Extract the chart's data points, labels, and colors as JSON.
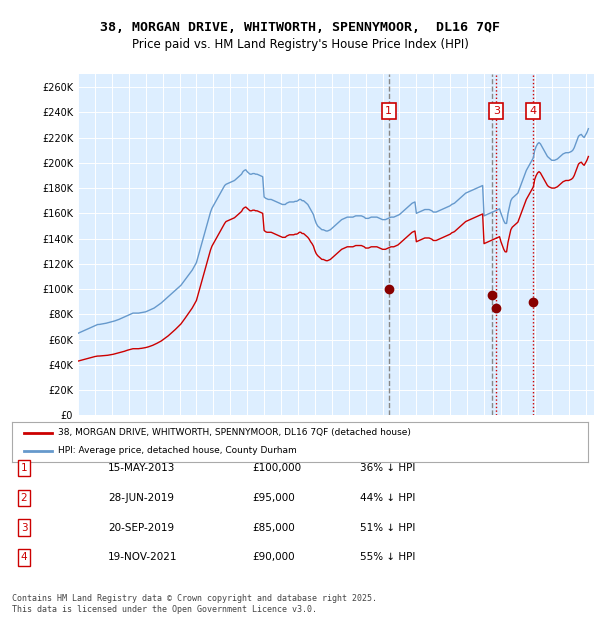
{
  "title": "38, MORGAN DRIVE, WHITWORTH, SPENNYMOOR,  DL16 7QF",
  "subtitle": "Price paid vs. HM Land Registry's House Price Index (HPI)",
  "bg_color": "#ddeeff",
  "plot_bg_color": "#ddeeff",
  "ylim": [
    0,
    270000
  ],
  "yticks": [
    0,
    20000,
    40000,
    60000,
    80000,
    100000,
    120000,
    140000,
    160000,
    180000,
    200000,
    220000,
    240000,
    260000
  ],
  "xlim_start": 1995.0,
  "xlim_end": 2025.5,
  "legend_label_red": "38, MORGAN DRIVE, WHITWORTH, SPENNYMOOR, DL16 7QF (detached house)",
  "legend_label_blue": "HPI: Average price, detached house, County Durham",
  "footer": "Contains HM Land Registry data © Crown copyright and database right 2025.\nThis data is licensed under the Open Government Licence v3.0.",
  "transactions": [
    {
      "num": 1,
      "date": "15-MAY-2013",
      "price": 100000,
      "pct": "36%",
      "x": 2013.37
    },
    {
      "num": 2,
      "date": "28-JUN-2019",
      "price": 95000,
      "pct": "44%",
      "x": 2019.49
    },
    {
      "num": 3,
      "date": "20-SEP-2019",
      "price": 85000,
      "pct": "51%",
      "x": 2019.72
    },
    {
      "num": 4,
      "date": "19-NOV-2021",
      "price": 90000,
      "pct": "55%",
      "x": 2021.88
    }
  ],
  "hpi_x": [
    1995.0,
    1995.083,
    1995.167,
    1995.25,
    1995.333,
    1995.417,
    1995.5,
    1995.583,
    1995.667,
    1995.75,
    1995.833,
    1995.917,
    1996.0,
    1996.083,
    1996.167,
    1996.25,
    1996.333,
    1996.417,
    1996.5,
    1996.583,
    1996.667,
    1996.75,
    1996.833,
    1996.917,
    1997.0,
    1997.083,
    1997.167,
    1997.25,
    1997.333,
    1997.417,
    1997.5,
    1997.583,
    1997.667,
    1997.75,
    1997.833,
    1997.917,
    1998.0,
    1998.083,
    1998.167,
    1998.25,
    1998.333,
    1998.417,
    1998.5,
    1998.583,
    1998.667,
    1998.75,
    1998.833,
    1998.917,
    1999.0,
    1999.083,
    1999.167,
    1999.25,
    1999.333,
    1999.417,
    1999.5,
    1999.583,
    1999.667,
    1999.75,
    1999.833,
    1999.917,
    2000.0,
    2000.083,
    2000.167,
    2000.25,
    2000.333,
    2000.417,
    2000.5,
    2000.583,
    2000.667,
    2000.75,
    2000.833,
    2000.917,
    2001.0,
    2001.083,
    2001.167,
    2001.25,
    2001.333,
    2001.417,
    2001.5,
    2001.583,
    2001.667,
    2001.75,
    2001.833,
    2001.917,
    2002.0,
    2002.083,
    2002.167,
    2002.25,
    2002.333,
    2002.417,
    2002.5,
    2002.583,
    2002.667,
    2002.75,
    2002.833,
    2002.917,
    2003.0,
    2003.083,
    2003.167,
    2003.25,
    2003.333,
    2003.417,
    2003.5,
    2003.583,
    2003.667,
    2003.75,
    2003.833,
    2003.917,
    2004.0,
    2004.083,
    2004.167,
    2004.25,
    2004.333,
    2004.417,
    2004.5,
    2004.583,
    2004.667,
    2004.75,
    2004.833,
    2004.917,
    2005.0,
    2005.083,
    2005.167,
    2005.25,
    2005.333,
    2005.417,
    2005.5,
    2005.583,
    2005.667,
    2005.75,
    2005.833,
    2005.917,
    2006.0,
    2006.083,
    2006.167,
    2006.25,
    2006.333,
    2006.417,
    2006.5,
    2006.583,
    2006.667,
    2006.75,
    2006.833,
    2006.917,
    2007.0,
    2007.083,
    2007.167,
    2007.25,
    2007.333,
    2007.417,
    2007.5,
    2007.583,
    2007.667,
    2007.75,
    2007.833,
    2007.917,
    2008.0,
    2008.083,
    2008.167,
    2008.25,
    2008.333,
    2008.417,
    2008.5,
    2008.583,
    2008.667,
    2008.75,
    2008.833,
    2008.917,
    2009.0,
    2009.083,
    2009.167,
    2009.25,
    2009.333,
    2009.417,
    2009.5,
    2009.583,
    2009.667,
    2009.75,
    2009.833,
    2009.917,
    2010.0,
    2010.083,
    2010.167,
    2010.25,
    2010.333,
    2010.417,
    2010.5,
    2010.583,
    2010.667,
    2010.75,
    2010.833,
    2010.917,
    2011.0,
    2011.083,
    2011.167,
    2011.25,
    2011.333,
    2011.417,
    2011.5,
    2011.583,
    2011.667,
    2011.75,
    2011.833,
    2011.917,
    2012.0,
    2012.083,
    2012.167,
    2012.25,
    2012.333,
    2012.417,
    2012.5,
    2012.583,
    2012.667,
    2012.75,
    2012.833,
    2012.917,
    2013.0,
    2013.083,
    2013.167,
    2013.25,
    2013.333,
    2013.417,
    2013.5,
    2013.583,
    2013.667,
    2013.75,
    2013.833,
    2013.917,
    2014.0,
    2014.083,
    2014.167,
    2014.25,
    2014.333,
    2014.417,
    2014.5,
    2014.583,
    2014.667,
    2014.75,
    2014.833,
    2014.917,
    2015.0,
    2015.083,
    2015.167,
    2015.25,
    2015.333,
    2015.417,
    2015.5,
    2015.583,
    2015.667,
    2015.75,
    2015.833,
    2015.917,
    2016.0,
    2016.083,
    2016.167,
    2016.25,
    2016.333,
    2016.417,
    2016.5,
    2016.583,
    2016.667,
    2016.75,
    2016.833,
    2016.917,
    2017.0,
    2017.083,
    2017.167,
    2017.25,
    2017.333,
    2017.417,
    2017.5,
    2017.583,
    2017.667,
    2017.75,
    2017.833,
    2017.917,
    2018.0,
    2018.083,
    2018.167,
    2018.25,
    2018.333,
    2018.417,
    2018.5,
    2018.583,
    2018.667,
    2018.75,
    2018.833,
    2018.917,
    2019.0,
    2019.083,
    2019.167,
    2019.25,
    2019.333,
    2019.417,
    2019.5,
    2019.583,
    2019.667,
    2019.75,
    2019.833,
    2019.917,
    2020.0,
    2020.083,
    2020.167,
    2020.25,
    2020.333,
    2020.417,
    2020.5,
    2020.583,
    2020.667,
    2020.75,
    2020.833,
    2020.917,
    2021.0,
    2021.083,
    2021.167,
    2021.25,
    2021.333,
    2021.417,
    2021.5,
    2021.583,
    2021.667,
    2021.75,
    2021.833,
    2021.917,
    2022.0,
    2022.083,
    2022.167,
    2022.25,
    2022.333,
    2022.417,
    2022.5,
    2022.583,
    2022.667,
    2022.75,
    2022.833,
    2022.917,
    2023.0,
    2023.083,
    2023.167,
    2023.25,
    2023.333,
    2023.417,
    2023.5,
    2023.583,
    2023.667,
    2023.75,
    2023.833,
    2023.917,
    2024.0,
    2024.083,
    2024.167,
    2024.25,
    2024.333,
    2024.417,
    2024.5,
    2024.583,
    2024.667,
    2024.75,
    2024.833,
    2024.917,
    2025.0,
    2025.083,
    2025.167
  ],
  "hpi_y": [
    65000,
    65500,
    66000,
    66500,
    67000,
    67500,
    68000,
    68500,
    69000,
    69500,
    70000,
    70500,
    71000,
    71500,
    72000,
    72000,
    72200,
    72400,
    72600,
    72800,
    73000,
    73300,
    73600,
    73900,
    74200,
    74500,
    74800,
    75200,
    75600,
    76000,
    76500,
    77000,
    77500,
    78000,
    78500,
    79000,
    79500,
    80000,
    80500,
    81000,
    81000,
    81000,
    81000,
    81000,
    81200,
    81400,
    81600,
    81800,
    82000,
    82500,
    83000,
    83500,
    84000,
    84500,
    85000,
    85800,
    86600,
    87400,
    88200,
    89000,
    90000,
    91000,
    92000,
    93000,
    94000,
    95000,
    96000,
    97000,
    98000,
    99000,
    100000,
    101000,
    102000,
    103000,
    104500,
    106000,
    107500,
    109000,
    110500,
    112000,
    113500,
    115000,
    117000,
    119000,
    121000,
    125000,
    129000,
    133000,
    137000,
    141000,
    145000,
    149000,
    153000,
    157000,
    161000,
    164000,
    166000,
    168000,
    170000,
    172000,
    174000,
    176000,
    178000,
    180000,
    182000,
    183000,
    183500,
    184000,
    184500,
    185000,
    185500,
    186000,
    187000,
    188000,
    189000,
    190000,
    191000,
    193000,
    194000,
    194500,
    193000,
    192000,
    191000,
    191000,
    191500,
    191500,
    191000,
    191000,
    190500,
    190000,
    189500,
    189000,
    173000,
    172000,
    171500,
    171000,
    171000,
    171000,
    170500,
    170000,
    169500,
    169000,
    168500,
    168000,
    167500,
    167000,
    167000,
    167000,
    168000,
    168500,
    169000,
    169000,
    169000,
    169000,
    169500,
    169500,
    170000,
    171000,
    171000,
    170000,
    170000,
    169000,
    168000,
    167000,
    165000,
    163000,
    161000,
    159000,
    155000,
    152000,
    150000,
    149000,
    148000,
    147000,
    147000,
    146500,
    146000,
    146000,
    146500,
    147000,
    148000,
    149000,
    150000,
    151000,
    152000,
    153000,
    154000,
    155000,
    155500,
    156000,
    156500,
    157000,
    157000,
    157000,
    157000,
    157000,
    157500,
    158000,
    158000,
    158000,
    158000,
    158000,
    157500,
    157000,
    156000,
    156000,
    156000,
    156500,
    157000,
    157000,
    157000,
    157000,
    157000,
    156500,
    156000,
    155500,
    155000,
    155000,
    155000,
    155500,
    156000,
    156500,
    157000,
    157000,
    157000,
    157500,
    158000,
    158500,
    159000,
    160000,
    161000,
    162000,
    163000,
    164000,
    165000,
    166000,
    167000,
    168000,
    168500,
    169000,
    160000,
    160500,
    161000,
    161500,
    162000,
    162500,
    163000,
    163000,
    163000,
    163000,
    162500,
    162000,
    161000,
    161000,
    161000,
    161500,
    162000,
    162500,
    163000,
    163500,
    164000,
    164500,
    165000,
    165500,
    166000,
    167000,
    167500,
    168000,
    169000,
    170000,
    171000,
    172000,
    173000,
    174000,
    175000,
    176000,
    176500,
    177000,
    177500,
    178000,
    178500,
    179000,
    179500,
    180000,
    180500,
    181000,
    181500,
    182000,
    158000,
    158500,
    159000,
    159500,
    160000,
    160500,
    161000,
    161500,
    162000,
    162500,
    163000,
    163500,
    160000,
    157000,
    154000,
    152000,
    152000,
    160000,
    165000,
    170000,
    172000,
    173000,
    174000,
    175000,
    176000,
    179000,
    182000,
    185000,
    188000,
    191000,
    194000,
    196000,
    198000,
    200000,
    202000,
    204000,
    210000,
    213000,
    215000,
    216000,
    215000,
    213000,
    211000,
    209000,
    207000,
    205000,
    204000,
    203000,
    202000,
    202000,
    202000,
    202500,
    203000,
    204000,
    205000,
    206000,
    207000,
    207500,
    208000,
    208000,
    208000,
    208500,
    209000,
    210000,
    212000,
    215000,
    218000,
    221000,
    222000,
    222500,
    221000,
    220000,
    222000,
    224000,
    227000
  ],
  "hpi_indexed_x": [
    1995.0,
    1995.083,
    1995.167,
    1995.25,
    1995.333,
    1995.417,
    1995.5,
    1995.583,
    1995.667,
    1995.75,
    1995.833,
    1995.917,
    1996.0,
    1996.083,
    1996.167,
    1996.25,
    1996.333,
    1996.417,
    1996.5,
    1996.583,
    1996.667,
    1996.75,
    1996.833,
    1996.917,
    1997.0,
    1997.083,
    1997.167,
    1997.25,
    1997.333,
    1997.417,
    1997.5,
    1997.583,
    1997.667,
    1997.75,
    1997.833,
    1997.917,
    1998.0,
    1998.083,
    1998.167,
    1998.25,
    1998.333,
    1998.417,
    1998.5,
    1998.583,
    1998.667,
    1998.75,
    1998.833,
    1998.917,
    1999.0,
    1999.083,
    1999.167,
    1999.25,
    1999.333,
    1999.417,
    1999.5,
    1999.583,
    1999.667,
    1999.75,
    1999.833,
    1999.917,
    2000.0,
    2000.083,
    2000.167,
    2000.25,
    2000.333,
    2000.417,
    2000.5,
    2000.583,
    2000.667,
    2000.75,
    2000.833,
    2000.917,
    2001.0,
    2001.083,
    2001.167,
    2001.25,
    2001.333,
    2001.417,
    2001.5,
    2001.583,
    2001.667,
    2001.75,
    2001.833,
    2001.917,
    2002.0,
    2002.083,
    2002.167,
    2002.25,
    2002.333,
    2002.417,
    2002.5,
    2002.583,
    2002.667,
    2002.75,
    2002.833,
    2002.917,
    2003.0,
    2003.083,
    2003.167,
    2003.25,
    2003.333,
    2003.417,
    2003.5,
    2003.583,
    2003.667,
    2003.75,
    2003.833,
    2003.917,
    2004.0,
    2004.083,
    2004.167,
    2004.25,
    2004.333,
    2004.417,
    2004.5,
    2004.583,
    2004.667,
    2004.75,
    2004.833,
    2004.917,
    2005.0,
    2005.083,
    2005.167,
    2005.25,
    2005.333,
    2005.417,
    2005.5,
    2005.583,
    2005.667,
    2005.75,
    2005.833,
    2005.917,
    2006.0,
    2006.083,
    2006.167,
    2006.25,
    2006.333,
    2006.417,
    2006.5,
    2006.583,
    2006.667,
    2006.75,
    2006.833,
    2006.917,
    2007.0,
    2007.083,
    2007.167,
    2007.25,
    2007.333,
    2007.417,
    2007.5,
    2007.583,
    2007.667,
    2007.75,
    2007.833,
    2007.917,
    2008.0,
    2008.083,
    2008.167,
    2008.25,
    2008.333,
    2008.417,
    2008.5,
    2008.583,
    2008.667,
    2008.75,
    2008.833,
    2008.917,
    2009.0,
    2009.083,
    2009.167,
    2009.25,
    2009.333,
    2009.417,
    2009.5,
    2009.583,
    2009.667,
    2009.75,
    2009.833,
    2009.917,
    2010.0,
    2010.083,
    2010.167,
    2010.25,
    2010.333,
    2010.417,
    2010.5,
    2010.583,
    2010.667,
    2010.75,
    2010.833,
    2010.917,
    2011.0,
    2011.083,
    2011.167,
    2011.25,
    2011.333,
    2011.417,
    2011.5,
    2011.583,
    2011.667,
    2011.75,
    2011.833,
    2011.917,
    2012.0,
    2012.083,
    2012.167,
    2012.25,
    2012.333,
    2012.417,
    2012.5,
    2012.583,
    2012.667,
    2012.75,
    2012.833,
    2012.917,
    2013.0,
    2013.083,
    2013.167,
    2013.25,
    2013.333,
    2013.417,
    2013.5,
    2013.583,
    2013.667,
    2013.75,
    2013.833,
    2013.917,
    2014.0,
    2014.083,
    2014.167,
    2014.25,
    2014.333,
    2014.417,
    2014.5,
    2014.583,
    2014.667,
    2014.75,
    2014.833,
    2014.917,
    2015.0,
    2015.083,
    2015.167,
    2015.25,
    2015.333,
    2015.417,
    2015.5,
    2015.583,
    2015.667,
    2015.75,
    2015.833,
    2015.917,
    2016.0,
    2016.083,
    2016.167,
    2016.25,
    2016.333,
    2016.417,
    2016.5,
    2016.583,
    2016.667,
    2016.75,
    2016.833,
    2016.917,
    2017.0,
    2017.083,
    2017.167,
    2017.25,
    2017.333,
    2017.417,
    2017.5,
    2017.583,
    2017.667,
    2017.75,
    2017.833,
    2017.917,
    2018.0,
    2018.083,
    2018.167,
    2018.25,
    2018.333,
    2018.417,
    2018.5,
    2018.583,
    2018.667,
    2018.75,
    2018.833,
    2018.917,
    2019.0,
    2019.083,
    2019.167,
    2019.25,
    2019.333,
    2019.417,
    2019.5,
    2019.583,
    2019.667,
    2019.75,
    2019.833,
    2019.917,
    2020.0,
    2020.083,
    2020.167,
    2020.25,
    2020.333,
    2020.417,
    2020.5,
    2020.583,
    2020.667,
    2020.75,
    2020.833,
    2020.917,
    2021.0,
    2021.083,
    2021.167,
    2021.25,
    2021.333,
    2021.417,
    2021.5,
    2021.583,
    2021.667,
    2021.75,
    2021.833,
    2021.917,
    2022.0,
    2022.083,
    2022.167,
    2022.25,
    2022.333,
    2022.417,
    2022.5,
    2022.583,
    2022.667,
    2022.75,
    2022.833,
    2022.917,
    2023.0,
    2023.083,
    2023.167,
    2023.25,
    2023.333,
    2023.417,
    2023.5,
    2023.583,
    2023.667,
    2023.75,
    2023.833,
    2023.917,
    2024.0,
    2024.083,
    2024.167,
    2024.25,
    2024.333,
    2024.417,
    2024.5,
    2024.583,
    2024.667,
    2024.75,
    2024.833,
    2024.917,
    2025.0,
    2025.083,
    2025.167
  ],
  "hpi_indexed_y": [
    43000,
    43300,
    43600,
    43900,
    44200,
    44500,
    44800,
    45100,
    45400,
    45700,
    46000,
    46300,
    46600,
    46800,
    47000,
    47000,
    47100,
    47200,
    47300,
    47400,
    47500,
    47600,
    47800,
    48000,
    48200,
    48400,
    48700,
    49000,
    49300,
    49600,
    49900,
    50200,
    50500,
    50800,
    51200,
    51600,
    51900,
    52200,
    52500,
    52800,
    52800,
    52800,
    52800,
    52800,
    53000,
    53100,
    53300,
    53500,
    53700,
    54000,
    54300,
    54700,
    55100,
    55500,
    56000,
    56500,
    57100,
    57700,
    58300,
    58900,
    59700,
    60500,
    61300,
    62100,
    63000,
    64000,
    65000,
    66000,
    67000,
    68000,
    69100,
    70200,
    71300,
    72400,
    73900,
    75400,
    77000,
    78600,
    80200,
    81800,
    83400,
    85000,
    87000,
    89000,
    91000,
    95000,
    99000,
    103000,
    107000,
    111000,
    115000,
    119000,
    123000,
    127000,
    131000,
    134000,
    136000,
    138000,
    140000,
    142000,
    144000,
    146000,
    148000,
    150000,
    152000,
    153500,
    154000,
    154500,
    155000,
    155500,
    156000,
    156500,
    157500,
    158500,
    159500,
    160500,
    161500,
    163500,
    164500,
    165000,
    164000,
    163000,
    162000,
    162000,
    162500,
    162500,
    162000,
    162000,
    161500,
    161000,
    160500,
    160000,
    146500,
    145500,
    145000,
    145000,
    145000,
    145000,
    144500,
    144000,
    143500,
    143000,
    142500,
    142000,
    141500,
    141000,
    141000,
    141000,
    142000,
    142500,
    143000,
    143000,
    143000,
    143000,
    143500,
    143500,
    144000,
    145000,
    145000,
    144000,
    144000,
    143000,
    142000,
    141000,
    139500,
    137500,
    136000,
    134000,
    130500,
    128000,
    126500,
    125500,
    124500,
    123500,
    123500,
    123000,
    122500,
    122500,
    123000,
    123500,
    124500,
    125500,
    126500,
    127500,
    128500,
    129500,
    130500,
    131500,
    132000,
    132500,
    133000,
    133500,
    133500,
    133500,
    133500,
    133500,
    134000,
    134500,
    134500,
    134500,
    134500,
    134500,
    134000,
    133500,
    132500,
    132500,
    132500,
    133000,
    133500,
    133500,
    133500,
    133500,
    133500,
    133000,
    132500,
    132000,
    131500,
    131500,
    131500,
    132000,
    132500,
    133000,
    133500,
    133500,
    133500,
    134000,
    134500,
    135000,
    136000,
    137000,
    138000,
    139000,
    140000,
    141000,
    142000,
    143000,
    144000,
    145000,
    145500,
    146000,
    137500,
    138000,
    138500,
    139000,
    139500,
    140000,
    140500,
    140500,
    140500,
    140500,
    140000,
    139500,
    138500,
    138500,
    138500,
    139000,
    139500,
    140000,
    140500,
    141000,
    141500,
    142000,
    142500,
    143000,
    143500,
    144500,
    145000,
    145500,
    146500,
    147500,
    148500,
    149500,
    150500,
    151500,
    152500,
    153500,
    154000,
    154500,
    155000,
    155500,
    156000,
    156500,
    157000,
    157500,
    158000,
    158500,
    159000,
    159500,
    136000,
    136500,
    137000,
    137500,
    138000,
    138500,
    139000,
    139500,
    140000,
    140500,
    141000,
    141500,
    137500,
    134500,
    131500,
    129500,
    129500,
    137000,
    142000,
    147000,
    149000,
    150000,
    151000,
    152000,
    153000,
    156000,
    159000,
    162000,
    165000,
    168000,
    171000,
    173000,
    175000,
    177000,
    179000,
    181000,
    187000,
    190000,
    192000,
    193000,
    192000,
    190000,
    188000,
    186000,
    184000,
    182000,
    181000,
    180500,
    180000,
    180000,
    180000,
    180500,
    181000,
    182000,
    183000,
    184000,
    185000,
    185500,
    186000,
    186000,
    186000,
    186500,
    187000,
    188000,
    190000,
    193000,
    196000,
    199000,
    200000,
    200500,
    199000,
    198000,
    200000,
    202000,
    205000
  ]
}
